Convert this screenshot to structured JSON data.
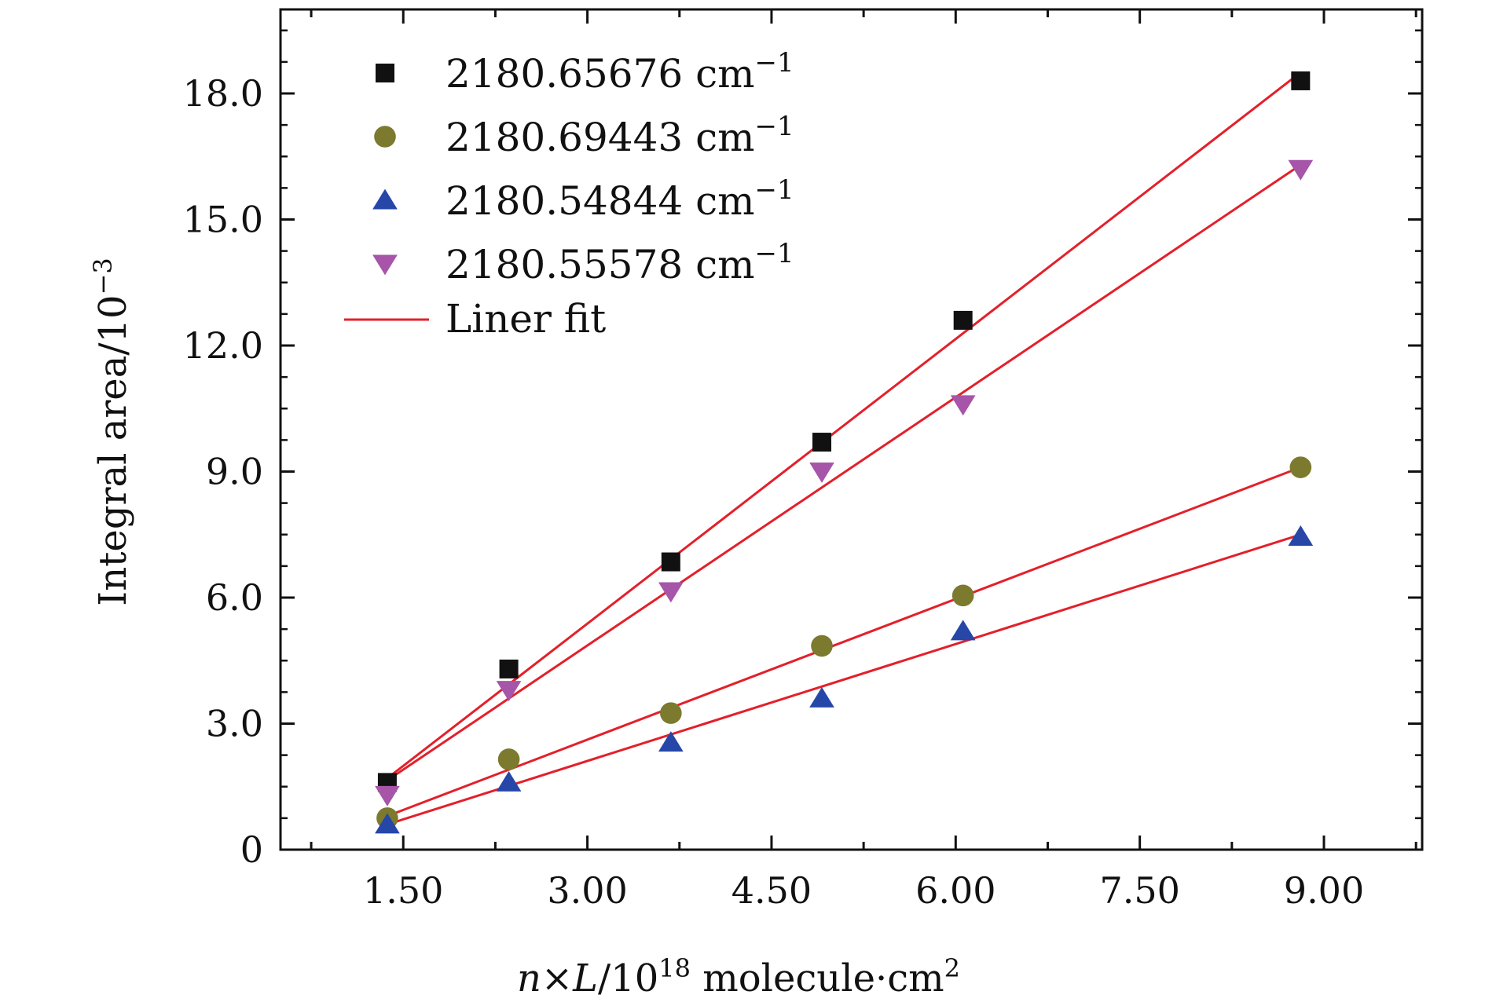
{
  "chart_data": {
    "type": "scatter",
    "xlabel": {
      "main": "n×L/10",
      "sup": "18",
      "rest": " molecule·cm",
      "sup2": "2"
    },
    "ylabel": {
      "main": "Integral area/10",
      "sup": "−3"
    },
    "xlim": [
      0.5,
      9.8
    ],
    "ylim": [
      0,
      20.0
    ],
    "x_ticks": [
      1.5,
      3.0,
      4.5,
      6.0,
      7.5,
      9.0
    ],
    "x_tick_labels": [
      "1.50",
      "3.00",
      "4.50",
      "6.00",
      "7.50",
      "9.00"
    ],
    "y_ticks": [
      0,
      3,
      6,
      9,
      12,
      15,
      18
    ],
    "y_tick_labels": [
      "0",
      "3.0",
      "6.0",
      "9.0",
      "12.0",
      "15.0",
      "18.0"
    ],
    "x": [
      1.37,
      2.36,
      3.68,
      4.91,
      6.06,
      8.81
    ],
    "series": [
      {
        "name": "2180.65676 cm",
        "sup": "−1",
        "marker": "square",
        "color": "#111111",
        "values": [
          1.6,
          4.3,
          6.85,
          9.7,
          12.6,
          18.3
        ]
      },
      {
        "name": "2180.69443 cm",
        "sup": "−1",
        "marker": "circle",
        "color": "#7b7a2e",
        "values": [
          0.75,
          2.15,
          3.25,
          4.85,
          6.05,
          9.1
        ]
      },
      {
        "name": "2180.54844 cm",
        "sup": "−1",
        "marker": "triangle-up",
        "color": "#2647a8",
        "values": [
          0.6,
          1.6,
          2.55,
          3.6,
          5.2,
          7.45
        ]
      },
      {
        "name": "2180.55578 cm",
        "sup": "−1",
        "marker": "triangle-down",
        "color": "#a655a8",
        "values": [
          1.3,
          3.8,
          6.15,
          9.0,
          10.6,
          16.2
        ]
      }
    ],
    "fits": [
      {
        "x": [
          1.37,
          8.81
        ],
        "y": [
          1.7,
          18.5
        ]
      },
      {
        "x": [
          1.37,
          8.81
        ],
        "y": [
          0.8,
          9.1
        ]
      },
      {
        "x": [
          1.37,
          8.81
        ],
        "y": [
          0.6,
          7.5
        ]
      },
      {
        "x": [
          1.37,
          8.81
        ],
        "y": [
          1.65,
          16.3
        ]
      }
    ],
    "fit_label": "Liner fit",
    "fit_color": "#e3202a",
    "legend_position": "top-left",
    "grid": false
  }
}
